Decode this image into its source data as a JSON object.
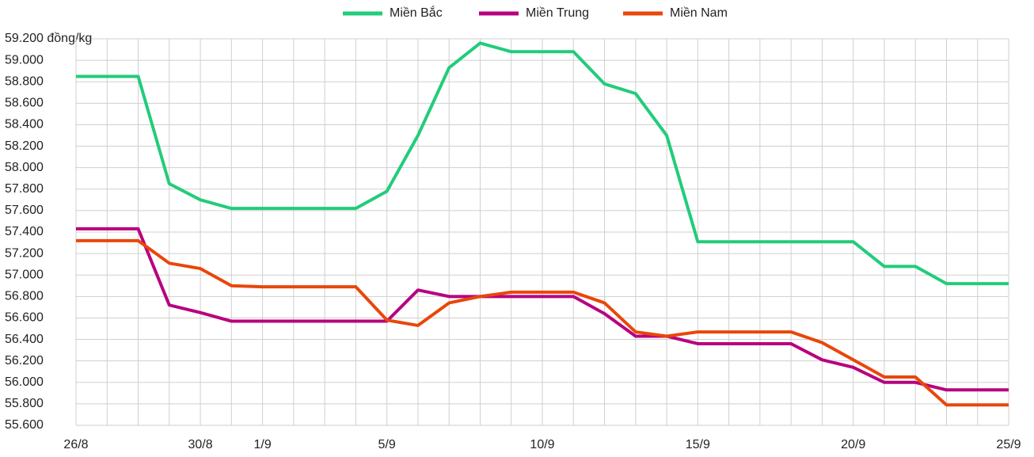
{
  "chart_data": {
    "type": "line",
    "categories": [
      "26/8",
      null,
      null,
      null,
      "30/8",
      null,
      "1/9",
      null,
      null,
      null,
      "5/9",
      null,
      null,
      null,
      null,
      "10/9",
      null,
      null,
      null,
      null,
      "15/9",
      null,
      null,
      null,
      null,
      "20/9",
      null,
      null,
      null,
      null,
      "25/9"
    ],
    "series": [
      {
        "name": "Miền Bắc",
        "color": "#22cc7a",
        "values": [
          58850,
          58850,
          58850,
          57850,
          57700,
          57620,
          57620,
          57620,
          57620,
          57620,
          57780,
          58300,
          58930,
          59160,
          59080,
          59080,
          59080,
          58780,
          58690,
          58300,
          57310,
          57310,
          57310,
          57310,
          57310,
          57310,
          57080,
          57080,
          56920,
          56920,
          56920
        ]
      },
      {
        "name": "Miền Trung",
        "color": "#b8007f",
        "values": [
          57430,
          57430,
          57430,
          56720,
          56650,
          56570,
          56570,
          56570,
          56570,
          56570,
          56570,
          56860,
          56800,
          56800,
          56800,
          56800,
          56800,
          56640,
          56430,
          56430,
          56360,
          56360,
          56360,
          56360,
          56210,
          56140,
          56000,
          56000,
          55930,
          55930,
          55930
        ]
      },
      {
        "name": "Miền Nam",
        "color": "#e8470a",
        "values": [
          57320,
          57320,
          57320,
          57110,
          57060,
          56900,
          56890,
          56890,
          56890,
          56890,
          56580,
          56530,
          56740,
          56800,
          56840,
          56840,
          56840,
          56740,
          56470,
          56430,
          56470,
          56470,
          56470,
          56470,
          56370,
          56210,
          56050,
          56050,
          55790,
          55790,
          55790
        ]
      }
    ],
    "ylim": [
      55600,
      59200
    ],
    "yticks": [
      {
        "value": 55600,
        "label": "55.600"
      },
      {
        "value": 55800,
        "label": "55.800"
      },
      {
        "value": 56000,
        "label": "56.000"
      },
      {
        "value": 56200,
        "label": "56.200"
      },
      {
        "value": 56400,
        "label": "56.400"
      },
      {
        "value": 56600,
        "label": "56.600"
      },
      {
        "value": 56800,
        "label": "56.800"
      },
      {
        "value": 57000,
        "label": "57.000"
      },
      {
        "value": 57200,
        "label": "57.200"
      },
      {
        "value": 57400,
        "label": "57.400"
      },
      {
        "value": 57600,
        "label": "57.600"
      },
      {
        "value": 57800,
        "label": "57.800"
      },
      {
        "value": 58000,
        "label": "58.000"
      },
      {
        "value": 58200,
        "label": "58.200"
      },
      {
        "value": 58400,
        "label": "58.400"
      },
      {
        "value": 58600,
        "label": "58.600"
      },
      {
        "value": 58800,
        "label": "58.800"
      },
      {
        "value": 59000,
        "label": "59.000"
      },
      {
        "value": 59200,
        "label": "59.200 đồng/kg"
      }
    ],
    "grid": true,
    "legend": "top"
  }
}
